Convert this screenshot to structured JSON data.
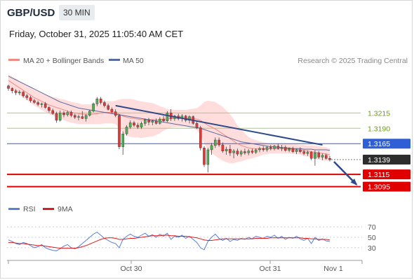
{
  "header": {
    "symbol": "GBP/USD",
    "timeframe": "30 MIN",
    "datetime": "Friday, October 31, 2025 11:05:40 AM CET"
  },
  "legend": {
    "ma20_label": "MA 20 + Bollinger Bands",
    "ma50_label": "MA 50",
    "credit": "Research © 2025 Trading Central",
    "rsi_label": "RSI",
    "rsi_ma_label": "9MA"
  },
  "colors": {
    "candle_up": "#4caf50",
    "candle_down": "#e53935",
    "bollinger_fill": "#ffd7d7",
    "ma20": "#f28b82",
    "ma50": "#5c6b9e",
    "trendline": "#2f4a8a",
    "resistance": "#a6cf6b",
    "pivot": "#2e5fd6",
    "support": "#e00000",
    "current_label": "#2d2d2d",
    "rsi": "#5b7fd8",
    "rsi_ma": "#e01b1b"
  },
  "chart_data": {
    "type": "candlestick",
    "x_tick_labels": [
      "Oct 30",
      "Oct 31",
      "Nov 1"
    ],
    "y_range": [
      1.3074,
      1.3285
    ],
    "levels": [
      {
        "value": 1.3215,
        "label": "1.3215",
        "kind": "resistance"
      },
      {
        "value": 1.319,
        "label": "1.3190",
        "kind": "resistance"
      },
      {
        "value": 1.3165,
        "label": "1.3165",
        "kind": "pivot"
      },
      {
        "value": 1.3139,
        "label": "1.3139",
        "kind": "current"
      },
      {
        "value": 1.3115,
        "label": "1.3115",
        "kind": "support"
      },
      {
        "value": 1.3095,
        "label": "1.3095",
        "kind": "support"
      }
    ],
    "candles": [
      [
        1.3259,
        1.3261,
        1.3251,
        1.3255
      ],
      [
        1.3255,
        1.3257,
        1.3247,
        1.3251
      ],
      [
        1.3251,
        1.3254,
        1.3244,
        1.3248
      ],
      [
        1.3248,
        1.3252,
        1.3244,
        1.3249
      ],
      [
        1.3249,
        1.3251,
        1.324,
        1.3243
      ],
      [
        1.3243,
        1.3246,
        1.3236,
        1.324
      ],
      [
        1.324,
        1.3243,
        1.3232,
        1.3235
      ],
      [
        1.3235,
        1.3238,
        1.323,
        1.3232
      ],
      [
        1.3232,
        1.3235,
        1.3226,
        1.3229
      ],
      [
        1.3229,
        1.3232,
        1.3224,
        1.323
      ],
      [
        1.323,
        1.3233,
        1.3222,
        1.3224
      ],
      [
        1.3224,
        1.3226,
        1.3216,
        1.3219
      ],
      [
        1.3219,
        1.3222,
        1.3212,
        1.3214
      ],
      [
        1.3214,
        1.3217,
        1.3199,
        1.3203
      ],
      [
        1.3203,
        1.3219,
        1.3201,
        1.3215
      ],
      [
        1.3215,
        1.3218,
        1.3208,
        1.3212
      ],
      [
        1.3212,
        1.3219,
        1.3209,
        1.3216
      ],
      [
        1.3216,
        1.3219,
        1.3208,
        1.3211
      ],
      [
        1.3211,
        1.3214,
        1.3205,
        1.3208
      ],
      [
        1.3208,
        1.3212,
        1.3203,
        1.3209
      ],
      [
        1.3209,
        1.3218,
        1.3205,
        1.3206
      ],
      [
        1.3206,
        1.3213,
        1.3201,
        1.3211
      ],
      [
        1.3211,
        1.322,
        1.3209,
        1.3218
      ],
      [
        1.3218,
        1.3232,
        1.3216,
        1.323
      ],
      [
        1.323,
        1.3241,
        1.3226,
        1.3238
      ],
      [
        1.3238,
        1.3241,
        1.3229,
        1.3232
      ],
      [
        1.3232,
        1.3235,
        1.3224,
        1.3227
      ],
      [
        1.3227,
        1.323,
        1.3219,
        1.3221
      ],
      [
        1.3221,
        1.3224,
        1.3214,
        1.3217
      ],
      [
        1.3217,
        1.3221,
        1.3208,
        1.3211
      ],
      [
        1.3211,
        1.3213,
        1.3156,
        1.316
      ],
      [
        1.316,
        1.3185,
        1.3147,
        1.3181
      ],
      [
        1.3181,
        1.3195,
        1.3178,
        1.3192
      ],
      [
        1.3192,
        1.3203,
        1.3189,
        1.3199
      ],
      [
        1.3199,
        1.3202,
        1.3192,
        1.3195
      ],
      [
        1.3195,
        1.3199,
        1.3189,
        1.3192
      ],
      [
        1.3192,
        1.3201,
        1.3189,
        1.3198
      ],
      [
        1.3198,
        1.3206,
        1.3194,
        1.3204
      ],
      [
        1.3204,
        1.3207,
        1.3195,
        1.32
      ],
      [
        1.32,
        1.3204,
        1.3195,
        1.3202
      ],
      [
        1.3202,
        1.3206,
        1.3196,
        1.3198
      ],
      [
        1.3198,
        1.3208,
        1.3196,
        1.3205
      ],
      [
        1.3205,
        1.321,
        1.32,
        1.3202
      ],
      [
        1.3202,
        1.3218,
        1.32,
        1.3215
      ],
      [
        1.3215,
        1.3221,
        1.3202,
        1.3206
      ],
      [
        1.3206,
        1.3212,
        1.3202,
        1.321
      ],
      [
        1.321,
        1.3214,
        1.3203,
        1.3206
      ],
      [
        1.3206,
        1.3213,
        1.3201,
        1.321
      ],
      [
        1.321,
        1.3212,
        1.32,
        1.3203
      ],
      [
        1.3203,
        1.3211,
        1.3198,
        1.3209
      ],
      [
        1.3209,
        1.3211,
        1.3196,
        1.3198
      ],
      [
        1.3198,
        1.3201,
        1.3189,
        1.3191
      ],
      [
        1.3191,
        1.3194,
        1.3154,
        1.3158
      ],
      [
        1.3158,
        1.3161,
        1.3127,
        1.3131
      ],
      [
        1.3131,
        1.3158,
        1.3118,
        1.3155
      ],
      [
        1.3155,
        1.3166,
        1.3147,
        1.3162
      ],
      [
        1.3162,
        1.3175,
        1.3158,
        1.3171
      ],
      [
        1.3171,
        1.3175,
        1.316,
        1.3163
      ],
      [
        1.3163,
        1.3167,
        1.315,
        1.3153
      ],
      [
        1.3153,
        1.316,
        1.3147,
        1.3156
      ],
      [
        1.3156,
        1.3163,
        1.3145,
        1.315
      ],
      [
        1.315,
        1.3156,
        1.3141,
        1.3153
      ],
      [
        1.3153,
        1.3157,
        1.3145,
        1.3148
      ],
      [
        1.3148,
        1.3155,
        1.3144,
        1.3152
      ],
      [
        1.3152,
        1.3157,
        1.3147,
        1.315
      ],
      [
        1.315,
        1.3156,
        1.3146,
        1.3153
      ],
      [
        1.3153,
        1.3157,
        1.3148,
        1.3151
      ],
      [
        1.3151,
        1.3157,
        1.3148,
        1.3155
      ],
      [
        1.3155,
        1.316,
        1.3151,
        1.3157
      ],
      [
        1.3157,
        1.3161,
        1.3152,
        1.3155
      ],
      [
        1.3155,
        1.3161,
        1.3152,
        1.3159
      ],
      [
        1.3159,
        1.3163,
        1.3154,
        1.3157
      ],
      [
        1.3157,
        1.3163,
        1.3154,
        1.3161
      ],
      [
        1.3161,
        1.3165,
        1.3155,
        1.3157
      ],
      [
        1.3157,
        1.3163,
        1.3153,
        1.3159
      ],
      [
        1.3159,
        1.3162,
        1.3152,
        1.3154
      ],
      [
        1.3154,
        1.3159,
        1.3151,
        1.3157
      ],
      [
        1.3157,
        1.316,
        1.315,
        1.3152
      ],
      [
        1.3152,
        1.3157,
        1.3148,
        1.3155
      ],
      [
        1.3155,
        1.3159,
        1.3149,
        1.3152
      ],
      [
        1.3152,
        1.3155,
        1.3146,
        1.3149
      ],
      [
        1.3149,
        1.3154,
        1.3145,
        1.3151
      ],
      [
        1.3151,
        1.3153,
        1.3138,
        1.3141
      ],
      [
        1.3141,
        1.3154,
        1.3129,
        1.315
      ],
      [
        1.315,
        1.3153,
        1.314,
        1.3143
      ],
      [
        1.3143,
        1.3149,
        1.3138,
        1.3146
      ],
      [
        1.3146,
        1.3149,
        1.3139,
        1.3141
      ],
      [
        1.3141,
        1.3145,
        1.3136,
        1.3139
      ]
    ],
    "ma20": [
      1.3268,
      1.3264,
      1.326,
      1.3256,
      1.3252,
      1.3248,
      1.3244,
      1.324,
      1.3237,
      1.3234,
      1.3231,
      1.3228,
      1.3226,
      1.3224,
      1.3222,
      1.322,
      1.3218,
      1.3216,
      1.3215,
      1.3214,
      1.3213,
      1.3213,
      1.3213,
      1.3213,
      1.3214,
      1.3215,
      1.3216,
      1.3216,
      1.3216,
      1.3216,
      1.3213,
      1.321,
      1.3208,
      1.3207,
      1.3206,
      1.3205,
      1.3204,
      1.3204,
      1.3204,
      1.3204,
      1.3204,
      1.3204,
      1.3205,
      1.3205,
      1.3206,
      1.3206,
      1.3206,
      1.3206,
      1.3206,
      1.3206,
      1.3206,
      1.3205,
      1.3203,
      1.3199,
      1.3195,
      1.3192,
      1.3189,
      1.3185,
      1.3181,
      1.3177,
      1.3173,
      1.3169,
      1.3165,
      1.3162,
      1.316,
      1.3158,
      1.3157,
      1.3157,
      1.3157,
      1.3157,
      1.3157,
      1.3157,
      1.3157,
      1.3157,
      1.3157,
      1.3157,
      1.3157,
      1.3156,
      1.3156,
      1.3155,
      1.3154,
      1.3153,
      1.3152,
      1.3151,
      1.315,
      1.3149,
      1.3148,
      1.3147
    ],
    "ma50": [
      1.3275,
      1.3272,
      1.3269,
      1.3266,
      1.3263,
      1.326,
      1.3257,
      1.3254,
      1.3251,
      1.3248,
      1.3245,
      1.3242,
      1.3239,
      1.3236,
      1.3233,
      1.3231,
      1.3229,
      1.3227,
      1.3225,
      1.3223,
      1.3222,
      1.3221,
      1.322,
      1.3219,
      1.3218,
      1.3217,
      1.3216,
      1.3215,
      1.3214,
      1.3213,
      1.3212,
      1.3211,
      1.321,
      1.3209,
      1.3208,
      1.3207,
      1.3206,
      1.3205,
      1.3204,
      1.3203,
      1.3202,
      1.3201,
      1.32,
      1.3199,
      1.3198,
      1.3197,
      1.3196,
      1.3195,
      1.3194,
      1.3193,
      1.3192,
      1.3191,
      1.319,
      1.3188,
      1.3186,
      1.3184,
      1.3182,
      1.318,
      1.3178,
      1.3176,
      1.3174,
      1.3172,
      1.317,
      1.3168,
      1.3167,
      1.3166,
      1.3165,
      1.3164,
      1.3163,
      1.3162,
      1.3161,
      1.316,
      1.316,
      1.3159,
      1.3159,
      1.3158,
      1.3158,
      1.3157,
      1.3157,
      1.3157,
      1.3156,
      1.3156,
      1.3156,
      1.3155,
      1.3155,
      1.3155,
      1.3155,
      1.3154
    ],
    "bb_width": [
      0.001,
      0.001,
      0.0011,
      0.0011,
      0.0012,
      0.0012,
      0.0013,
      0.0013,
      0.0013,
      0.0014,
      0.0014,
      0.0015,
      0.0015,
      0.0016,
      0.0016,
      0.0017,
      0.0017,
      0.0017,
      0.0017,
      0.0017,
      0.0016,
      0.0016,
      0.0016,
      0.0016,
      0.0017,
      0.0018,
      0.0018,
      0.0018,
      0.0018,
      0.0019,
      0.0024,
      0.0028,
      0.003,
      0.0031,
      0.0031,
      0.003,
      0.003,
      0.0029,
      0.0028,
      0.0027,
      0.0025,
      0.0022,
      0.0019,
      0.0016,
      0.0015,
      0.0014,
      0.0014,
      0.0014,
      0.0014,
      0.0015,
      0.0016,
      0.0018,
      0.0024,
      0.0034,
      0.004,
      0.0042,
      0.0044,
      0.0044,
      0.0044,
      0.0042,
      0.004,
      0.0036,
      0.003,
      0.0026,
      0.0022,
      0.0018,
      0.0016,
      0.0014,
      0.0012,
      0.001,
      0.0009,
      0.0008,
      0.0008,
      0.0008,
      0.0008,
      0.0008,
      0.0008,
      0.0008,
      0.0008,
      0.0008,
      0.0009,
      0.0009,
      0.001,
      0.0011,
      0.0011,
      0.0011,
      0.0011,
      0.001
    ],
    "trendline": [
      [
        1.3227,
        0
      ],
      [
        1.3163,
        1
      ]
    ],
    "forecast_arrow": [
      1.3139,
      1.3095
    ],
    "rsi": {
      "y_ticks": [
        70,
        50,
        30
      ],
      "y_range": [
        15,
        85
      ],
      "rsi": [
        45,
        42,
        38,
        36,
        40,
        38,
        34,
        30,
        32,
        36,
        30,
        27,
        25,
        24,
        28,
        33,
        36,
        30,
        28,
        32,
        38,
        44,
        50,
        56,
        60,
        54,
        48,
        44,
        40,
        38,
        30,
        46,
        52,
        56,
        52,
        50,
        54,
        58,
        52,
        55,
        50,
        56,
        52,
        58,
        46,
        52,
        50,
        54,
        48,
        52,
        46,
        40,
        30,
        26,
        42,
        50,
        56,
        48,
        44,
        48,
        42,
        46,
        44,
        48,
        46,
        50,
        47,
        52,
        50,
        48,
        52,
        50,
        54,
        48,
        52,
        46,
        50,
        48,
        52,
        47,
        44,
        48,
        38,
        50,
        44,
        47,
        43,
        42
      ],
      "ma": [
        40,
        40,
        39,
        38,
        38,
        37,
        36,
        35,
        34,
        34,
        33,
        32,
        31,
        30,
        29,
        29,
        29,
        29,
        29,
        30,
        32,
        34,
        37,
        40,
        43,
        46,
        48,
        49,
        49,
        48,
        46,
        46,
        47,
        48,
        48,
        49,
        50,
        51,
        52,
        53,
        53,
        53,
        54,
        54,
        53,
        53,
        52,
        52,
        52,
        51,
        50,
        49,
        47,
        45,
        44,
        44,
        45,
        46,
        47,
        47,
        47,
        47,
        47,
        47,
        47,
        47,
        47,
        48,
        48,
        48,
        48,
        49,
        49,
        49,
        49,
        49,
        49,
        49,
        49,
        49,
        48,
        48,
        47,
        47,
        46,
        46,
        46,
        45
      ]
    }
  }
}
